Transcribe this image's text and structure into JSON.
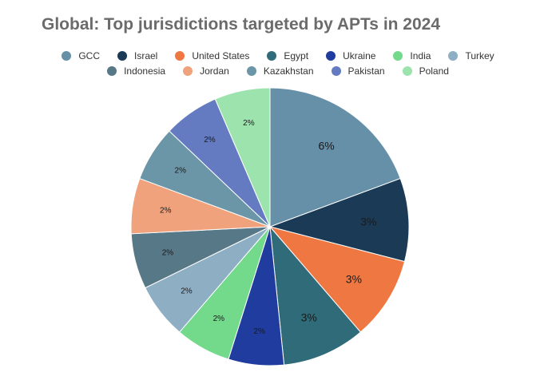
{
  "chart_data": {
    "type": "pie",
    "title": "Global: Top jurisdictions targeted by APTs in 2024",
    "legend_position": "top",
    "slices": [
      {
        "label": "GCC",
        "value": 6,
        "display": "6%",
        "color": "#6590a8"
      },
      {
        "label": "Israel",
        "value": 3,
        "display": "3%",
        "color": "#1b3a56"
      },
      {
        "label": "United States",
        "value": 3,
        "display": "3%",
        "color": "#ef7842"
      },
      {
        "label": "Egypt",
        "value": 3,
        "display": "3%",
        "color": "#2f6b78"
      },
      {
        "label": "Ukraine",
        "value": 2,
        "display": "2%",
        "color": "#1f3c9e"
      },
      {
        "label": "India",
        "value": 2,
        "display": "2%",
        "color": "#73d98b"
      },
      {
        "label": "Turkey",
        "value": 2,
        "display": "2%",
        "color": "#8eaec4"
      },
      {
        "label": "Indonesia",
        "value": 2,
        "display": "2%",
        "color": "#577887"
      },
      {
        "label": "Jordan",
        "value": 2,
        "display": "2%",
        "color": "#f0a27c"
      },
      {
        "label": "Kazakhstan",
        "value": 2,
        "display": "2%",
        "color": "#6a96a8"
      },
      {
        "label": "Pakistan",
        "value": 2,
        "display": "2%",
        "color": "#647bc2"
      },
      {
        "label": "Poland",
        "value": 2,
        "display": "2%",
        "color": "#9de3ad"
      }
    ]
  }
}
